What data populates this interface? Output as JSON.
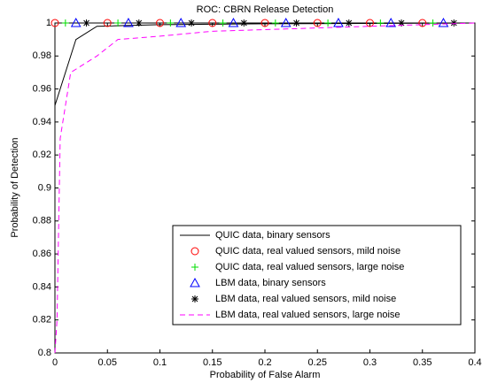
{
  "chart_data": {
    "type": "line",
    "title": "ROC: CBRN Release Detection",
    "xlabel": "Probability of False Alarm",
    "ylabel": "Probability of Detection",
    "xlim": [
      0,
      0.4
    ],
    "xticks": [
      0,
      0.05,
      0.1,
      0.15,
      0.2,
      0.25,
      0.3,
      0.35,
      0.4
    ],
    "ylim": [
      0.8,
      1
    ],
    "yticks": [
      0.8,
      0.82,
      0.84,
      0.86,
      0.88,
      0.9,
      0.92,
      0.94,
      0.96,
      0.98,
      1
    ],
    "legend": "southeast",
    "series": [
      {
        "name": "QUIC data, binary sensors",
        "color": "#000000",
        "linestyle": "solid",
        "marker": "none",
        "x": [
          0,
          0.02,
          0.04,
          0.1,
          0.2,
          0.4
        ],
        "values": [
          0.95,
          0.99,
          0.998,
          0.999,
          0.9995,
          1
        ]
      },
      {
        "name": "QUIC data, real valued sensors, mild noise",
        "color": "#ff0000",
        "linestyle": "none",
        "marker": "o",
        "x": [
          0,
          0.05,
          0.1,
          0.15,
          0.2,
          0.25,
          0.3,
          0.35
        ],
        "values": [
          1,
          1,
          1,
          1,
          1,
          1,
          1,
          1
        ]
      },
      {
        "name": "QUIC data, real valued sensors, large noise",
        "color": "#00dd00",
        "linestyle": "none",
        "marker": "+",
        "x": [
          0.01,
          0.06,
          0.11,
          0.16,
          0.21,
          0.26,
          0.31,
          0.36
        ],
        "values": [
          1,
          1,
          1,
          1,
          1,
          1,
          1,
          1
        ]
      },
      {
        "name": "LBM data, binary sensors",
        "color": "#0000ff",
        "linestyle": "none",
        "marker": "^",
        "x": [
          0.02,
          0.07,
          0.12,
          0.17,
          0.22,
          0.27,
          0.32,
          0.37
        ],
        "values": [
          1,
          1,
          1,
          1,
          1,
          1,
          1,
          1
        ]
      },
      {
        "name": "LBM data, real valued sensors, mild noise",
        "color": "#000000",
        "linestyle": "none",
        "marker": "*",
        "x": [
          0.03,
          0.08,
          0.13,
          0.18,
          0.23,
          0.28,
          0.33,
          0.38
        ],
        "values": [
          1,
          1,
          1,
          1,
          1,
          1,
          1,
          1
        ]
      },
      {
        "name": "LBM data, real valued sensors, large noise",
        "color": "#ff00ff",
        "linestyle": "dashed",
        "marker": "none",
        "x": [
          0,
          0.002,
          0.005,
          0.015,
          0.04,
          0.06,
          0.1,
          0.15,
          0.2,
          0.3,
          0.4
        ],
        "values": [
          0.8,
          0.82,
          0.93,
          0.97,
          0.98,
          0.99,
          0.992,
          0.995,
          0.996,
          0.998,
          1
        ]
      }
    ]
  }
}
